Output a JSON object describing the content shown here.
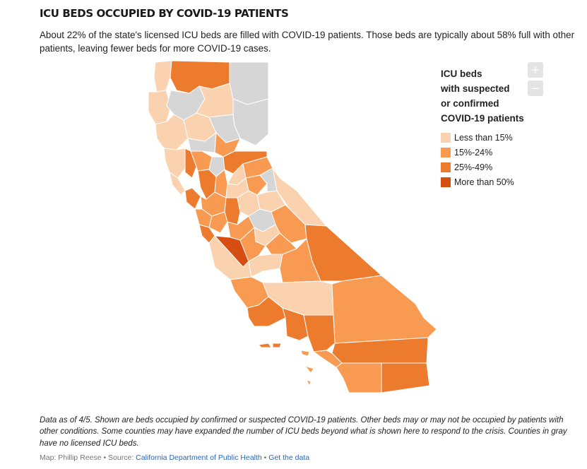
{
  "header": {
    "title": "ICU BEDS OCCUPIED BY COVID-19 PATIENTS",
    "subtitle": "About 22% of the state's licensed ICU beds are filled with COVID-19 patients. Those beds are typically about 58% full with other patients, leaving fewer beds for more COVID-19 cases."
  },
  "zoom": {
    "in_label": "+",
    "out_label": "−"
  },
  "legend": {
    "title_lines": [
      "ICU beds",
      "with suspected",
      "or confirmed",
      "COVID-19 patients"
    ],
    "items": [
      {
        "label": "Less than 15%",
        "color": "#fbd2b0"
      },
      {
        "label": "15%-24%",
        "color": "#f99a52"
      },
      {
        "label": "25%-49%",
        "color": "#ed7b2d"
      },
      {
        "label": "More than 50%",
        "color": "#d64e12"
      }
    ]
  },
  "map_colors": {
    "none": "#d6d6d6",
    "low": "#fbd2b0",
    "mid": "#f99a52",
    "high": "#ed7b2d",
    "max": "#d64e12",
    "border": "#ffffff"
  },
  "footnote": "Data as of 4/5. Shown are beds occupied by confirmed or suspected COVID-19 patients. Other beds may or may not be occupied by patients with other conditions. Some counties may have expanded the number of ICU beds beyond what is shown here to respond to the crisis. Counties in gray have no licensed ICU beds.",
  "credit": {
    "map_by": "Map: Phillip Reese",
    "sep1": " • Source: ",
    "source": "California Department of Public Health",
    "sep2": " • ",
    "data_link": "Get the data"
  }
}
